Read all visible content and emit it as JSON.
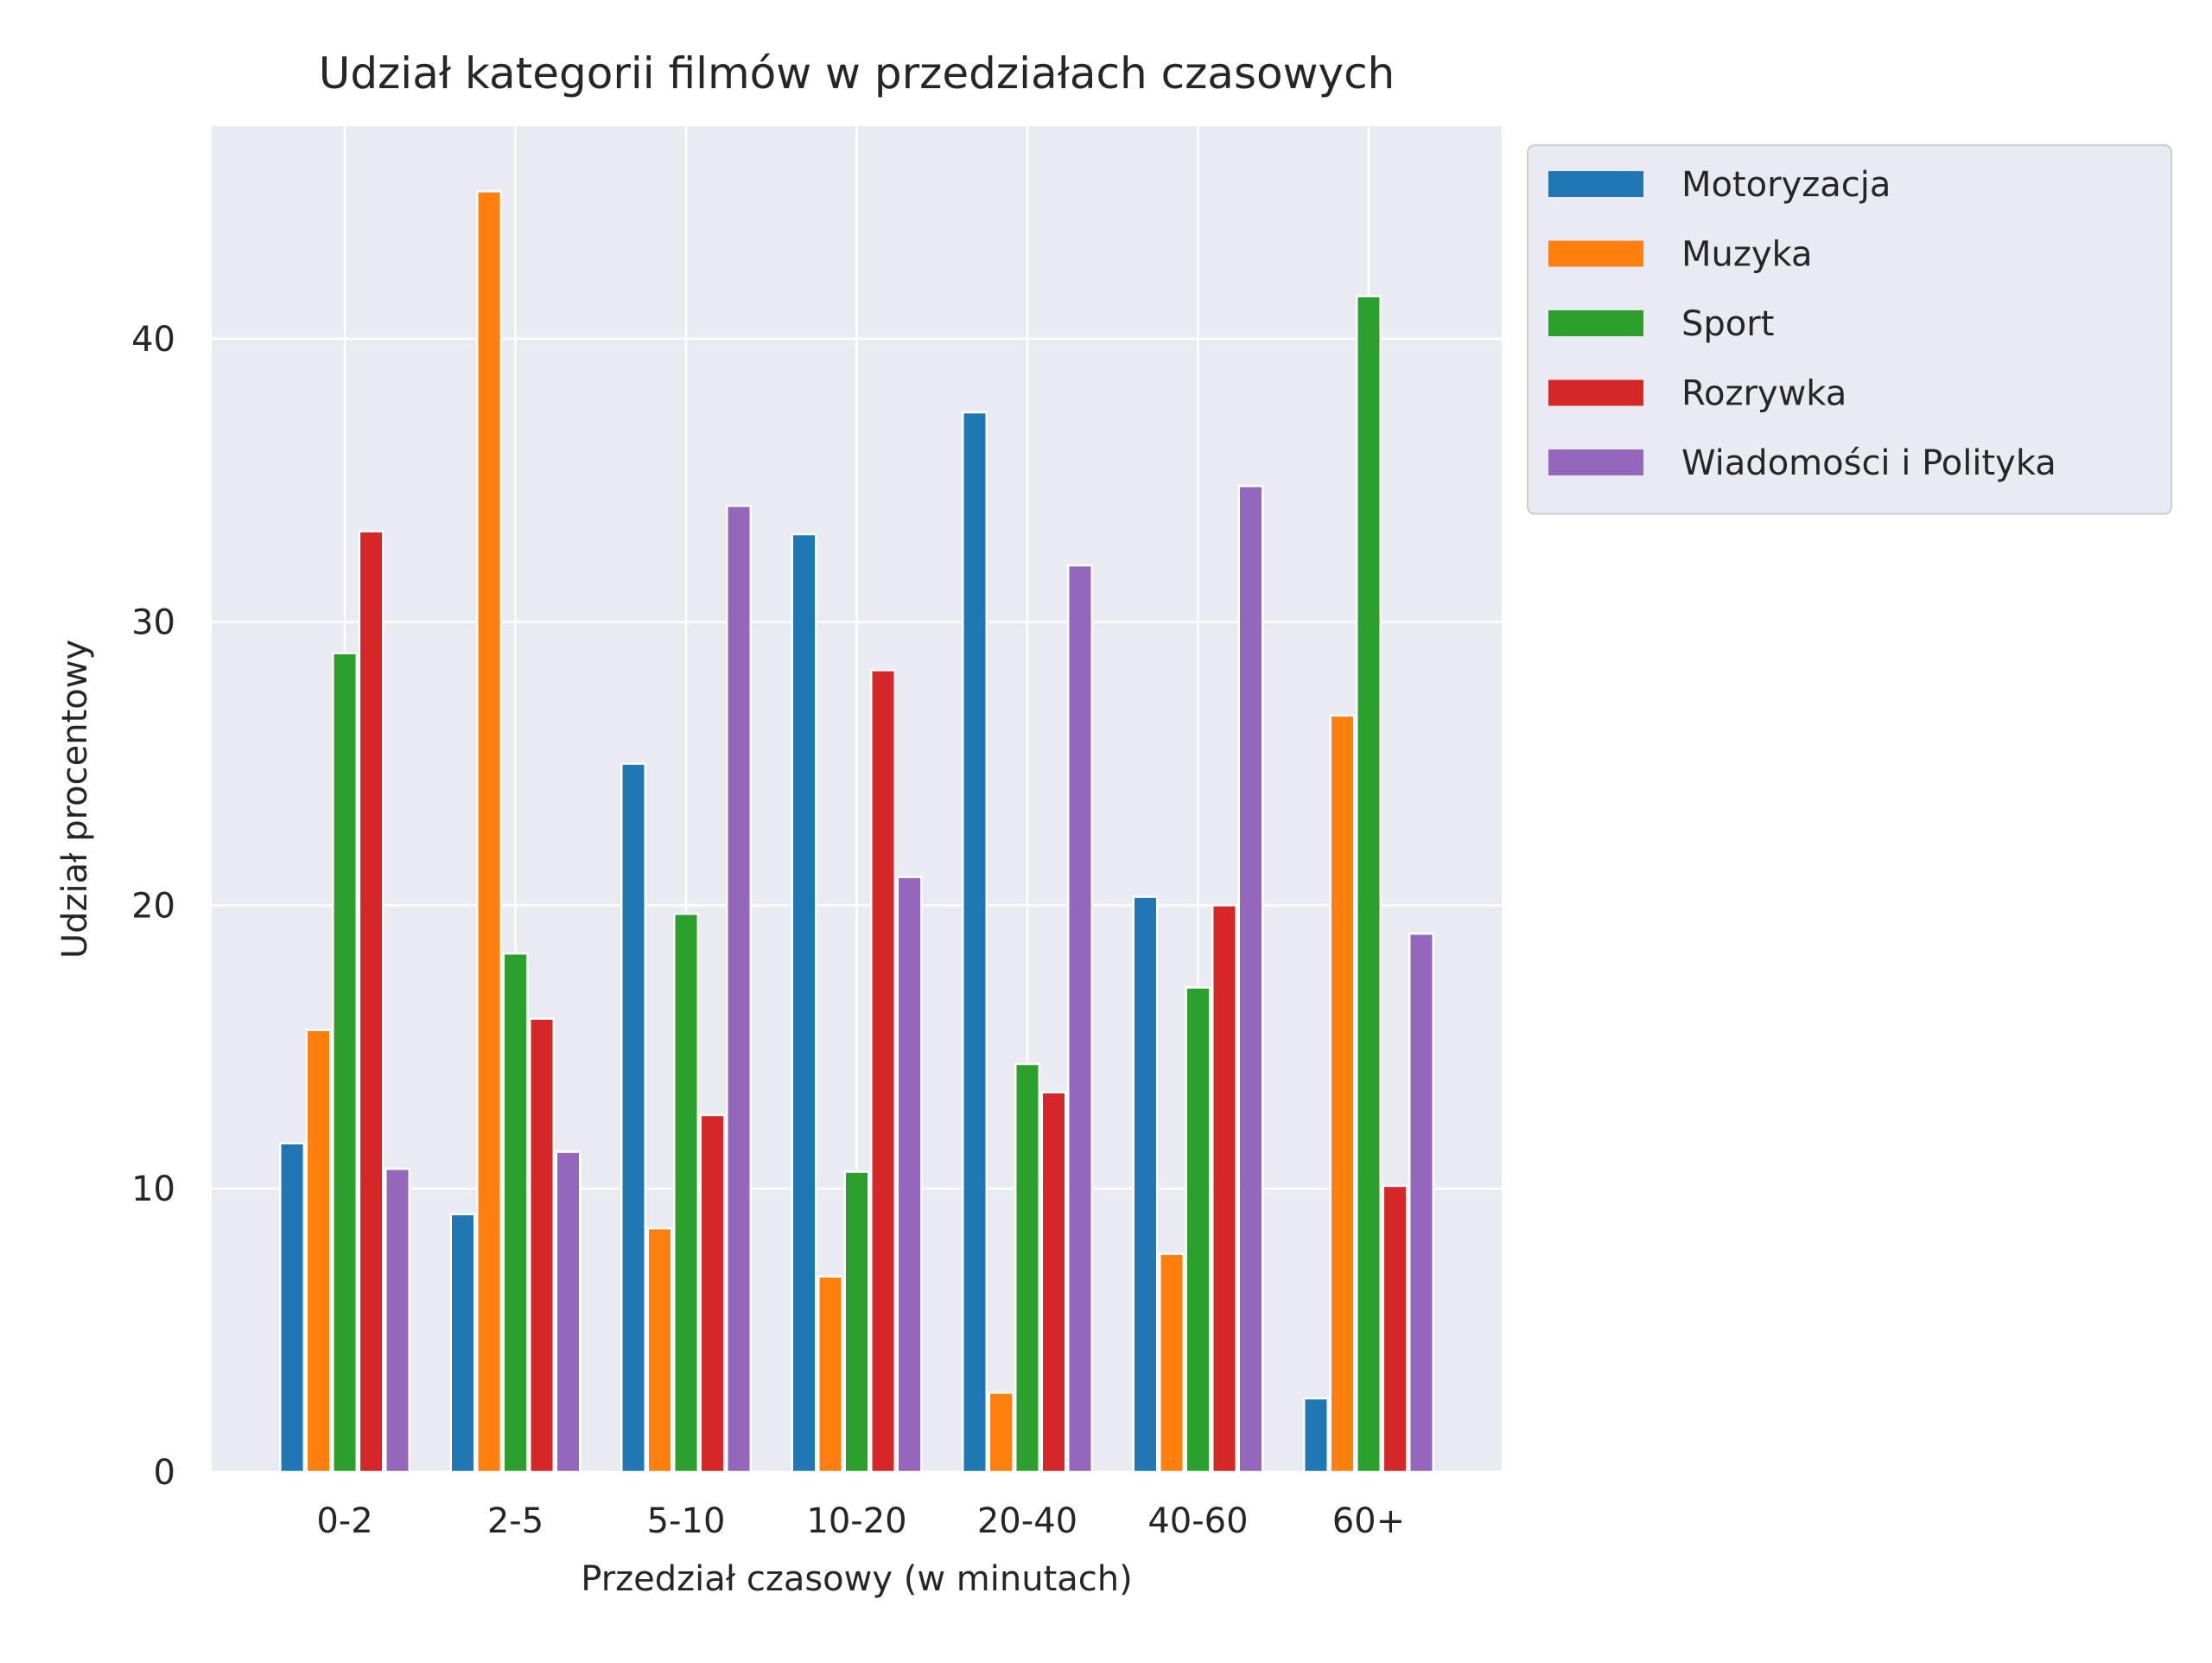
{
  "chart_data": {
    "type": "bar",
    "title": "Udział kategorii filmów w przedziałach czasowych",
    "xlabel": "Przedział czasowy (w minutach)",
    "ylabel": "Udział procentowy",
    "categories": [
      "0-2",
      "2-5",
      "5-10",
      "10-20",
      "20-40",
      "40-60",
      "60+"
    ],
    "series": [
      {
        "name": "Motoryzacja",
        "color": "#1f77b4",
        "values": [
          11.6,
          9.1,
          25.0,
          33.1,
          37.4,
          20.3,
          2.6
        ]
      },
      {
        "name": "Muzyka",
        "color": "#ff7f0e",
        "values": [
          15.6,
          45.2,
          8.6,
          6.9,
          2.8,
          7.7,
          26.7
        ]
      },
      {
        "name": "Sport",
        "color": "#2ca02c",
        "values": [
          28.9,
          18.3,
          19.7,
          10.6,
          14.4,
          17.1,
          41.5
        ]
      },
      {
        "name": "Rozrywka",
        "color": "#d62728",
        "values": [
          33.2,
          16.0,
          12.6,
          28.3,
          13.4,
          20.0,
          10.1
        ]
      },
      {
        "name": "Wiadomości i Polityka",
        "color": "#9467bd",
        "values": [
          10.7,
          11.3,
          34.1,
          21.0,
          32.0,
          34.8,
          19.0
        ]
      }
    ],
    "ylim": [
      0,
      47.5
    ],
    "yticks": [
      0,
      10,
      20,
      30,
      40
    ],
    "grid": true,
    "legend_position": "outside-top-right",
    "background": "#eaeaf2"
  }
}
